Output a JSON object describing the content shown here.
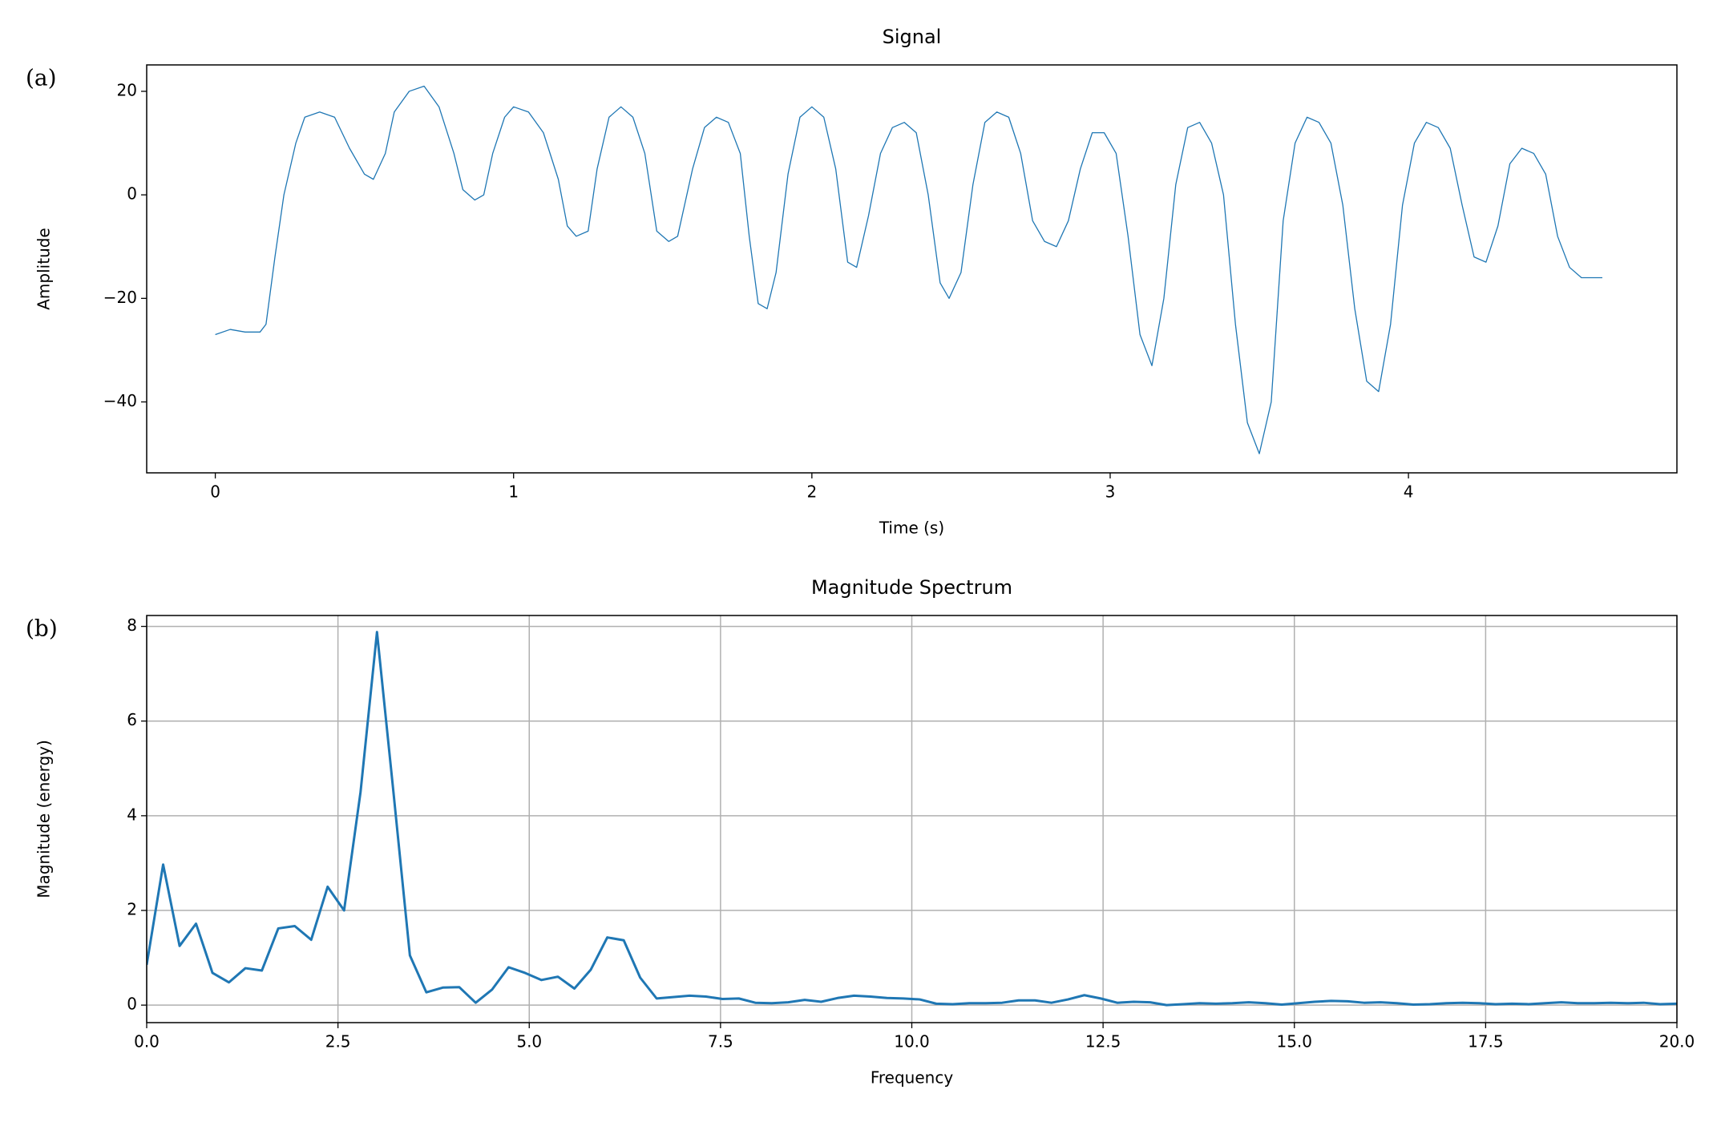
{
  "chart_data": [
    {
      "type": "line",
      "panel_label": "(a)",
      "title": "Signal",
      "x_label": "Time (s)",
      "y_label": "Amplitude",
      "grid": false,
      "line_width": 1.3,
      "xlim": [
        -0.23,
        4.9
      ],
      "ylim": [
        -53.7,
        25.1
      ],
      "xticks": [
        0,
        1,
        2,
        3,
        4
      ],
      "yticks": [
        {
          "value": -40,
          "label": "−40"
        },
        {
          "value": -20,
          "label": "−20"
        },
        0,
        20
      ],
      "series": [
        {
          "color": "#1f77b4",
          "x": [
            0,
            0.05,
            0.1,
            0.15,
            0.17,
            0.2,
            0.23,
            0.27,
            0.3,
            0.35,
            0.4,
            0.45,
            0.5,
            0.53,
            0.57,
            0.6,
            0.65,
            0.7,
            0.75,
            0.8,
            0.83,
            0.87,
            0.9,
            0.93,
            0.97,
            1.0,
            1.05,
            1.1,
            1.15,
            1.18,
            1.21,
            1.25,
            1.28,
            1.32,
            1.36,
            1.4,
            1.44,
            1.48,
            1.52,
            1.55,
            1.6,
            1.64,
            1.68,
            1.72,
            1.76,
            1.79,
            1.82,
            1.85,
            1.88,
            1.92,
            1.96,
            2.0,
            2.04,
            2.08,
            2.12,
            2.15,
            2.19,
            2.23,
            2.27,
            2.31,
            2.35,
            2.39,
            2.43,
            2.46,
            2.5,
            2.54,
            2.58,
            2.62,
            2.66,
            2.7,
            2.74,
            2.78,
            2.82,
            2.86,
            2.9,
            2.94,
            2.98,
            3.02,
            3.06,
            3.1,
            3.14,
            3.18,
            3.22,
            3.26,
            3.3,
            3.34,
            3.38,
            3.42,
            3.46,
            3.5,
            3.54,
            3.58,
            3.62,
            3.66,
            3.7,
            3.74,
            3.78,
            3.82,
            3.86,
            3.9,
            3.94,
            3.98,
            4.02,
            4.06,
            4.1,
            4.14,
            4.18,
            4.22,
            4.26,
            4.3,
            4.34,
            4.38,
            4.42,
            4.46,
            4.5,
            4.54,
            4.58,
            4.62,
            4.65
          ],
          "values": [
            -27,
            -26,
            -26.5,
            -26.5,
            -25,
            -12,
            0,
            10,
            15,
            16,
            15,
            9,
            4,
            3,
            8,
            16,
            20,
            21,
            17,
            8,
            1,
            -1,
            0,
            8,
            15,
            17,
            16,
            12,
            3,
            -6,
            -8,
            -7,
            5,
            15,
            17,
            15,
            8,
            -7,
            -9,
            -8,
            5,
            13,
            15,
            14,
            8,
            -8,
            -21,
            -22,
            -15,
            4,
            15,
            17,
            15,
            5,
            -13,
            -14,
            -4,
            8,
            13,
            14,
            12,
            0,
            -17,
            -20,
            -15,
            2,
            14,
            16,
            15,
            8,
            -5,
            -9,
            -10,
            -5,
            5,
            12,
            12,
            8,
            -8,
            -27,
            -33,
            -20,
            2,
            13,
            14,
            10,
            0,
            -25,
            -44,
            -50,
            -40,
            -5,
            10,
            15,
            14,
            10,
            -2,
            -22,
            -36,
            -38,
            -25,
            -2,
            10,
            14,
            13,
            9,
            -2,
            -12,
            -13,
            -6,
            6,
            9,
            8,
            4,
            -8,
            -14,
            -16,
            -16,
            -16
          ]
        }
      ]
    },
    {
      "type": "line",
      "panel_label": "(b)",
      "title": "Magnitude Spectrum",
      "x_label": "Frequency",
      "y_label": "Magnitude (energy)",
      "grid": true,
      "line_width": 3,
      "xlim": [
        0,
        20
      ],
      "ylim": [
        -0.37,
        8.23
      ],
      "xticks": [
        {
          "value": 0,
          "label": "0.0"
        },
        2.5,
        {
          "value": 5,
          "label": "5.0"
        },
        7.5,
        {
          "value": 10,
          "label": "10.0"
        },
        12.5,
        {
          "value": 15,
          "label": "15.0"
        },
        17.5,
        {
          "value": 20,
          "label": "20.0"
        }
      ],
      "yticks": [
        0,
        2,
        4,
        6,
        8
      ],
      "series": [
        {
          "color": "#1f77b4",
          "x": [
            0,
            0.215,
            0.43,
            0.645,
            0.86,
            1.075,
            1.29,
            1.505,
            1.72,
            1.935,
            2.15,
            2.365,
            2.58,
            2.795,
            3.01,
            3.225,
            3.44,
            3.655,
            3.87,
            4.085,
            4.3,
            4.515,
            4.73,
            4.945,
            5.16,
            5.375,
            5.59,
            5.805,
            6.02,
            6.235,
            6.45,
            6.665,
            6.88,
            7.095,
            7.31,
            7.525,
            7.74,
            7.955,
            8.17,
            8.385,
            8.6,
            8.815,
            9.03,
            9.245,
            9.46,
            9.675,
            9.89,
            10.105,
            10.32,
            10.535,
            10.75,
            10.965,
            11.18,
            11.395,
            11.61,
            11.825,
            12.04,
            12.255,
            12.47,
            12.685,
            12.9,
            13.115,
            13.33,
            13.545,
            13.76,
            13.975,
            14.19,
            14.405,
            14.62,
            14.835,
            15.05,
            15.265,
            15.48,
            15.695,
            15.91,
            16.125,
            16.34,
            16.555,
            16.77,
            16.985,
            17.2,
            17.415,
            17.63,
            17.845,
            18.06,
            18.275,
            18.49,
            18.705,
            18.92,
            19.135,
            19.35,
            19.565,
            19.78,
            19.995
          ],
          "values": [
            0.85,
            2.97,
            1.25,
            1.72,
            0.68,
            0.48,
            0.78,
            0.73,
            1.62,
            1.67,
            1.38,
            2.5,
            2.0,
            4.5,
            7.88,
            4.5,
            1.05,
            0.27,
            0.37,
            0.38,
            0.05,
            0.33,
            0.8,
            0.68,
            0.53,
            0.6,
            0.35,
            0.75,
            1.43,
            1.37,
            0.58,
            0.14,
            0.17,
            0.2,
            0.18,
            0.13,
            0.14,
            0.05,
            0.04,
            0.06,
            0.11,
            0.07,
            0.15,
            0.2,
            0.18,
            0.15,
            0.14,
            0.12,
            0.03,
            0.02,
            0.04,
            0.04,
            0.05,
            0.1,
            0.1,
            0.05,
            0.12,
            0.21,
            0.14,
            0.05,
            0.07,
            0.06,
            0,
            0.02,
            0.04,
            0.03,
            0.04,
            0.06,
            0.04,
            0.01,
            0.04,
            0.07,
            0.09,
            0.08,
            0.05,
            0.06,
            0.04,
            0.01,
            0.02,
            0.04,
            0.05,
            0.04,
            0.02,
            0.03,
            0.02,
            0.04,
            0.06,
            0.04,
            0.04,
            0.05,
            0.04,
            0.05,
            0.02,
            0.03
          ]
        }
      ]
    }
  ]
}
